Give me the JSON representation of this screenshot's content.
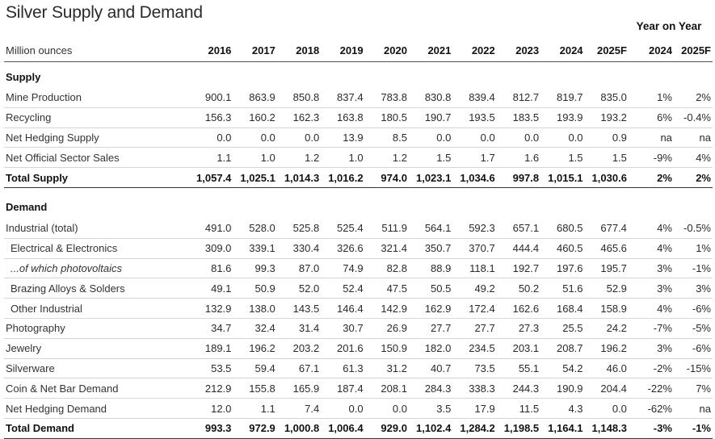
{
  "title": "Silver Supply and Demand",
  "yoy_header": "Year on Year",
  "units_label": "Million ounces",
  "columns": [
    "2016",
    "2017",
    "2018",
    "2019",
    "2020",
    "2021",
    "2022",
    "2023",
    "2024",
    "2025F"
  ],
  "pct_columns": [
    "2024",
    "2025F"
  ],
  "supply": {
    "heading": "Supply",
    "rows": [
      {
        "label": "Mine Production",
        "values": [
          "900.1",
          "863.9",
          "850.8",
          "837.4",
          "783.8",
          "830.8",
          "839.4",
          "812.7",
          "819.7",
          "835.0"
        ],
        "pct": [
          "1%",
          "2%"
        ]
      },
      {
        "label": "Recycling",
        "values": [
          "156.3",
          "160.2",
          "162.3",
          "163.8",
          "180.5",
          "190.7",
          "193.5",
          "183.5",
          "193.9",
          "193.2"
        ],
        "pct": [
          "6%",
          "-0.4%"
        ]
      },
      {
        "label": "Net Hedging Supply",
        "values": [
          "0.0",
          "0.0",
          "0.0",
          "13.9",
          "8.5",
          "0.0",
          "0.0",
          "0.0",
          "0.0",
          "0.9"
        ],
        "pct": [
          "na",
          "na"
        ]
      },
      {
        "label": "Net Official Sector Sales",
        "values": [
          "1.1",
          "1.0",
          "1.2",
          "1.0",
          "1.2",
          "1.5",
          "1.7",
          "1.6",
          "1.5",
          "1.5"
        ],
        "pct": [
          "-9%",
          "4%"
        ]
      }
    ],
    "total": {
      "label": "Total Supply",
      "values": [
        "1,057.4",
        "1,025.1",
        "1,014.3",
        "1,016.2",
        "974.0",
        "1,023.1",
        "1,034.6",
        "997.8",
        "1,015.1",
        "1,030.6"
      ],
      "pct": [
        "2%",
        "2%"
      ]
    }
  },
  "demand": {
    "heading": "Demand",
    "rows": [
      {
        "label": "Industrial (total)",
        "values": [
          "491.0",
          "528.0",
          "525.8",
          "525.4",
          "511.9",
          "564.1",
          "592.3",
          "657.1",
          "680.5",
          "677.4"
        ],
        "pct": [
          "4%",
          "-0.5%"
        ]
      },
      {
        "label": "Electrical & Electronics",
        "values": [
          "309.0",
          "339.1",
          "330.4",
          "326.6",
          "321.4",
          "350.7",
          "370.7",
          "444.4",
          "460.5",
          "465.6"
        ],
        "pct": [
          "4%",
          "1%"
        ],
        "indent": true
      },
      {
        "label": "...of which photovoltaics",
        "values": [
          "81.6",
          "99.3",
          "87.0",
          "74.9",
          "82.8",
          "88.9",
          "118.1",
          "192.7",
          "197.6",
          "195.7"
        ],
        "pct": [
          "3%",
          "-1%"
        ],
        "indent": true,
        "italic": true
      },
      {
        "label": "Brazing Alloys & Solders",
        "values": [
          "49.1",
          "50.9",
          "52.0",
          "52.4",
          "47.5",
          "50.5",
          "49.2",
          "50.2",
          "51.6",
          "52.9"
        ],
        "pct": [
          "3%",
          "3%"
        ],
        "indent": true
      },
      {
        "label": "Other Industrial",
        "values": [
          "132.9",
          "138.0",
          "143.5",
          "146.4",
          "142.9",
          "162.9",
          "172.4",
          "162.6",
          "168.4",
          "158.9"
        ],
        "pct": [
          "4%",
          "-6%"
        ],
        "indent": true
      },
      {
        "label": "Photography",
        "values": [
          "34.7",
          "32.4",
          "31.4",
          "30.7",
          "26.9",
          "27.7",
          "27.7",
          "27.3",
          "25.5",
          "24.2"
        ],
        "pct": [
          "-7%",
          "-5%"
        ]
      },
      {
        "label": "Jewelry",
        "values": [
          "189.1",
          "196.2",
          "203.2",
          "201.6",
          "150.9",
          "182.0",
          "234.5",
          "203.1",
          "208.7",
          "196.2"
        ],
        "pct": [
          "3%",
          "-6%"
        ]
      },
      {
        "label": "Silverware",
        "values": [
          "53.5",
          "59.4",
          "67.1",
          "61.3",
          "31.2",
          "40.7",
          "73.5",
          "55.1",
          "54.2",
          "46.0"
        ],
        "pct": [
          "-2%",
          "-15%"
        ]
      },
      {
        "label": "Coin & Net Bar Demand",
        "values": [
          "212.9",
          "155.8",
          "165.9",
          "187.4",
          "208.1",
          "284.3",
          "338.3",
          "244.3",
          "190.9",
          "204.4"
        ],
        "pct": [
          "-22%",
          "7%"
        ]
      },
      {
        "label": "Net Hedging Demand",
        "values": [
          "12.0",
          "1.1",
          "7.4",
          "0.0",
          "0.0",
          "3.5",
          "17.9",
          "11.5",
          "4.3",
          "0.0"
        ],
        "pct": [
          "-62%",
          "na"
        ]
      }
    ],
    "total": {
      "label": "Total Demand",
      "values": [
        "993.3",
        "972.9",
        "1,000.8",
        "1,006.4",
        "929.0",
        "1,102.4",
        "1,284.2",
        "1,198.5",
        "1,164.1",
        "1,148.3"
      ],
      "pct": [
        "-3%",
        "-1%"
      ]
    }
  }
}
